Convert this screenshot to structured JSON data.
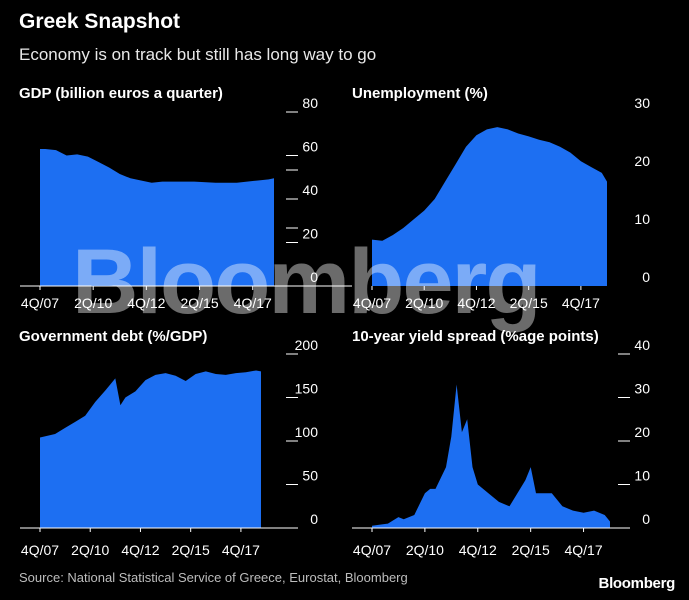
{
  "header": {
    "title": "Greek Snapshot",
    "subtitle": "Economy is on track but still has long way to go"
  },
  "footer": {
    "source": "Source: National Statistical Service of Greece, Eurostat, Bloomberg",
    "brand": "Bloomberg"
  },
  "watermark": "Bloomberg",
  "colors": {
    "fill": "#1d6ff2",
    "axis": "#ffffff",
    "background": "#000000"
  },
  "chart_data": [
    {
      "type": "area",
      "title": "GDP (billion euros a quarter)",
      "x_ticks": [
        "4Q/07",
        "2Q/10",
        "4Q/12",
        "2Q/15",
        "4Q/17"
      ],
      "y_ticks": [
        0,
        20,
        40,
        60,
        80
      ],
      "ylim": [
        0,
        80
      ],
      "xlim": [
        2007.75,
        2019.0
      ],
      "x": [
        2007.75,
        2008.0,
        2008.5,
        2009.0,
        2009.5,
        2010.0,
        2010.5,
        2011.0,
        2011.5,
        2012.0,
        2012.5,
        2013.0,
        2013.5,
        2014.0,
        2015.0,
        2016.0,
        2017.0,
        2018.0,
        2018.5,
        2018.75
      ],
      "y": [
        63,
        63,
        62.5,
        60,
        60.5,
        59.5,
        57,
        54.5,
        51.5,
        49.5,
        48.5,
        47.5,
        48,
        48,
        48,
        47.5,
        47.5,
        48.5,
        49,
        49.5
      ]
    },
    {
      "type": "area",
      "title": "Unemployment (%)",
      "x_ticks": [
        "4Q/07",
        "2Q/10",
        "4Q/12",
        "2Q/15",
        "4Q/17"
      ],
      "y_ticks": [
        0,
        10,
        20,
        30
      ],
      "ylim": [
        0,
        30
      ],
      "xlim": [
        2007.75,
        2019.0
      ],
      "x": [
        2007.75,
        2008.25,
        2008.75,
        2009.25,
        2009.75,
        2010.25,
        2010.75,
        2011.25,
        2011.75,
        2012.25,
        2012.75,
        2013.25,
        2013.75,
        2014.25,
        2014.75,
        2015.25,
        2015.75,
        2016.25,
        2016.75,
        2017.25,
        2017.75,
        2018.25,
        2018.75,
        2019.0
      ],
      "y": [
        8,
        7.8,
        8.8,
        10,
        11.5,
        13,
        15,
        18,
        21,
        24,
        26,
        27,
        27.4,
        27,
        26.3,
        25.8,
        25.2,
        24.8,
        24,
        23,
        21.5,
        20.5,
        19.5,
        18
      ]
    },
    {
      "type": "area",
      "title": "Government debt (%/GDP)",
      "x_ticks": [
        "4Q/07",
        "2Q/10",
        "4Q/12",
        "2Q/15",
        "4Q/17"
      ],
      "y_ticks": [
        0,
        50,
        100,
        150,
        200
      ],
      "ylim": [
        0,
        200
      ],
      "xlim": [
        2007.75,
        2019.25
      ],
      "x": [
        2007.75,
        2008.5,
        2009.0,
        2009.5,
        2010.0,
        2010.5,
        2011.0,
        2011.5,
        2011.75,
        2012.0,
        2012.5,
        2013.0,
        2013.5,
        2014.0,
        2014.5,
        2015.0,
        2015.5,
        2016.0,
        2016.5,
        2017.0,
        2017.5,
        2018.0,
        2018.5,
        2018.75
      ],
      "y": [
        104,
        108,
        115,
        122,
        129,
        145,
        158,
        172,
        141,
        150,
        157,
        170,
        176,
        178,
        175,
        169,
        177,
        180,
        177,
        176,
        178,
        179,
        181,
        180
      ]
    },
    {
      "type": "area",
      "title": "10-year yield spread (%age points)",
      "x_ticks": [
        "4Q/07",
        "2Q/10",
        "4Q/12",
        "2Q/15",
        "4Q/17"
      ],
      "y_ticks": [
        0,
        10,
        20,
        30,
        40
      ],
      "ylim": [
        0,
        40
      ],
      "xlim": [
        2007.75,
        2019.25
      ],
      "x": [
        2007.75,
        2008.5,
        2009.0,
        2009.25,
        2009.75,
        2010.25,
        2010.5,
        2010.75,
        2011.25,
        2011.5,
        2011.75,
        2012.0,
        2012.25,
        2012.5,
        2012.75,
        2013.25,
        2013.75,
        2014.25,
        2014.75,
        2015.0,
        2015.25,
        2015.5,
        2015.75,
        2016.25,
        2016.75,
        2017.25,
        2017.75,
        2018.25,
        2018.75,
        2019.0
      ],
      "y": [
        0.5,
        1,
        2.5,
        2,
        3,
        8,
        9,
        9,
        14,
        21,
        33,
        22,
        25,
        14,
        10,
        8,
        6,
        5,
        9,
        11,
        14,
        8,
        8,
        8,
        5,
        4,
        3.5,
        4,
        3,
        1.5
      ]
    }
  ]
}
